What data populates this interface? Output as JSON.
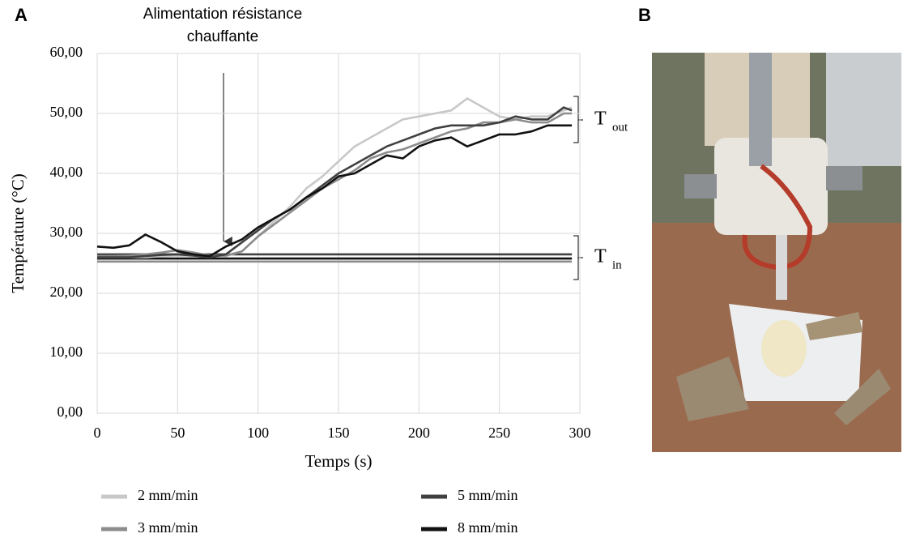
{
  "chart_data": {
    "type": "line",
    "panel_labels": [
      "A",
      "B"
    ],
    "annotation": [
      "Alimentation résistance",
      "chauffante"
    ],
    "x_label": "Temps (s)",
    "y_label": "Température (°C)",
    "bracket_labels": [
      {
        "symbol": "T",
        "subscript": "out"
      },
      {
        "symbol": "T",
        "subscript": "in"
      }
    ],
    "x": [
      0,
      10,
      20,
      30,
      40,
      50,
      60,
      70,
      80,
      90,
      100,
      110,
      120,
      130,
      140,
      150,
      160,
      170,
      180,
      190,
      200,
      210,
      220,
      230,
      240,
      250,
      260,
      270,
      280,
      290,
      295
    ],
    "series": [
      {
        "name": "2 mm/min",
        "color": "#c8c8c8",
        "values": [
          26,
          26,
          26,
          26,
          26.2,
          26.3,
          26.2,
          26.2,
          26.2,
          27,
          29.5,
          32,
          34.5,
          37.5,
          39.5,
          42,
          44.5,
          46,
          47.5,
          49,
          49.5,
          50,
          50.5,
          52.5,
          51,
          49.5,
          49,
          49.5,
          49.5,
          50.5,
          51
        ],
        "values_in": [
          25.8,
          25.8,
          25.8,
          25.8,
          25.8,
          25.8,
          25.8,
          25.8,
          25.8,
          25.8,
          25.8,
          25.8,
          25.8,
          25.8,
          25.8,
          25.8,
          25.8,
          25.8,
          25.8,
          25.8,
          25.8,
          25.8,
          25.8,
          25.8,
          25.8,
          25.8,
          25.8,
          25.8,
          25.8,
          25.8,
          25.8
        ]
      },
      {
        "name": "3 mm/min",
        "color": "#8c8c8c",
        "values": [
          26.2,
          26.2,
          26.3,
          26.5,
          26.8,
          27.2,
          26.8,
          26.3,
          26.3,
          27,
          29.5,
          31.5,
          33.5,
          35.5,
          37.5,
          39,
          40.5,
          42.5,
          43.5,
          44,
          45,
          46,
          47,
          47.5,
          48.5,
          48.5,
          49,
          48.5,
          48.5,
          50,
          50
        ],
        "values_in": [
          25.3,
          25.3,
          25.3,
          25.3,
          25.3,
          25.3,
          25.3,
          25.3,
          25.3,
          25.3,
          25.3,
          25.3,
          25.3,
          25.3,
          25.3,
          25.3,
          25.3,
          25.3,
          25.3,
          25.3,
          25.3,
          25.3,
          25.3,
          25.3,
          25.3,
          25.3,
          25.3,
          25.3,
          25.3,
          25.3,
          25.3
        ]
      },
      {
        "name": "5 mm/min",
        "color": "#404040",
        "values": [
          26,
          26,
          26,
          26.2,
          26.4,
          26.5,
          26.3,
          26,
          26.5,
          28.5,
          30.5,
          32.5,
          34,
          36,
          38,
          40,
          41.5,
          43,
          44.5,
          45.5,
          46.5,
          47.5,
          48,
          48,
          48,
          48.5,
          49.5,
          49,
          49,
          51,
          50.5
        ],
        "values_in": [
          26.5,
          26.5,
          26.5,
          26.5,
          26.5,
          26.5,
          26.5,
          26.5,
          26.5,
          26.5,
          26.5,
          26.5,
          26.5,
          26.5,
          26.5,
          26.5,
          26.5,
          26.5,
          26.5,
          26.5,
          26.5,
          26.5,
          26.5,
          26.5,
          26.5,
          26.5,
          26.5,
          26.5,
          26.5,
          26.5,
          26.5
        ]
      },
      {
        "name": "8 mm/min",
        "color": "#111111",
        "values": [
          27.8,
          27.6,
          28,
          29.8,
          28.5,
          27,
          26.5,
          26.2,
          27.8,
          29,
          31,
          32.5,
          34,
          36,
          37.5,
          39.5,
          40,
          41.5,
          43,
          42.5,
          44.5,
          45.5,
          46,
          44.5,
          45.5,
          46.5,
          46.5,
          47,
          48,
          48,
          48
        ],
        "values_in": [
          25.8,
          25.8,
          25.8,
          25.8,
          25.8,
          25.8,
          25.8,
          25.8,
          25.8,
          25.8,
          25.8,
          25.8,
          25.8,
          25.8,
          25.8,
          25.8,
          25.8,
          25.8,
          25.8,
          25.8,
          25.8,
          25.8,
          25.8,
          25.8,
          25.8,
          25.8,
          25.8,
          25.8,
          25.8,
          25.8,
          25.8
        ]
      }
    ],
    "xlim": [
      0,
      300
    ],
    "xticks": [
      0,
      50,
      100,
      150,
      200,
      250,
      300
    ],
    "ylim": [
      0,
      60
    ],
    "yticks": [
      {
        "value": 0,
        "label": "0,00"
      },
      {
        "value": 10,
        "label": "10,00"
      },
      {
        "value": 20,
        "label": "20,00"
      },
      {
        "value": 30,
        "label": "30,00"
      },
      {
        "value": 40,
        "label": "40,00"
      },
      {
        "value": 50,
        "label": "50,00"
      },
      {
        "value": 60,
        "label": "60,00"
      }
    ],
    "grid": true
  }
}
